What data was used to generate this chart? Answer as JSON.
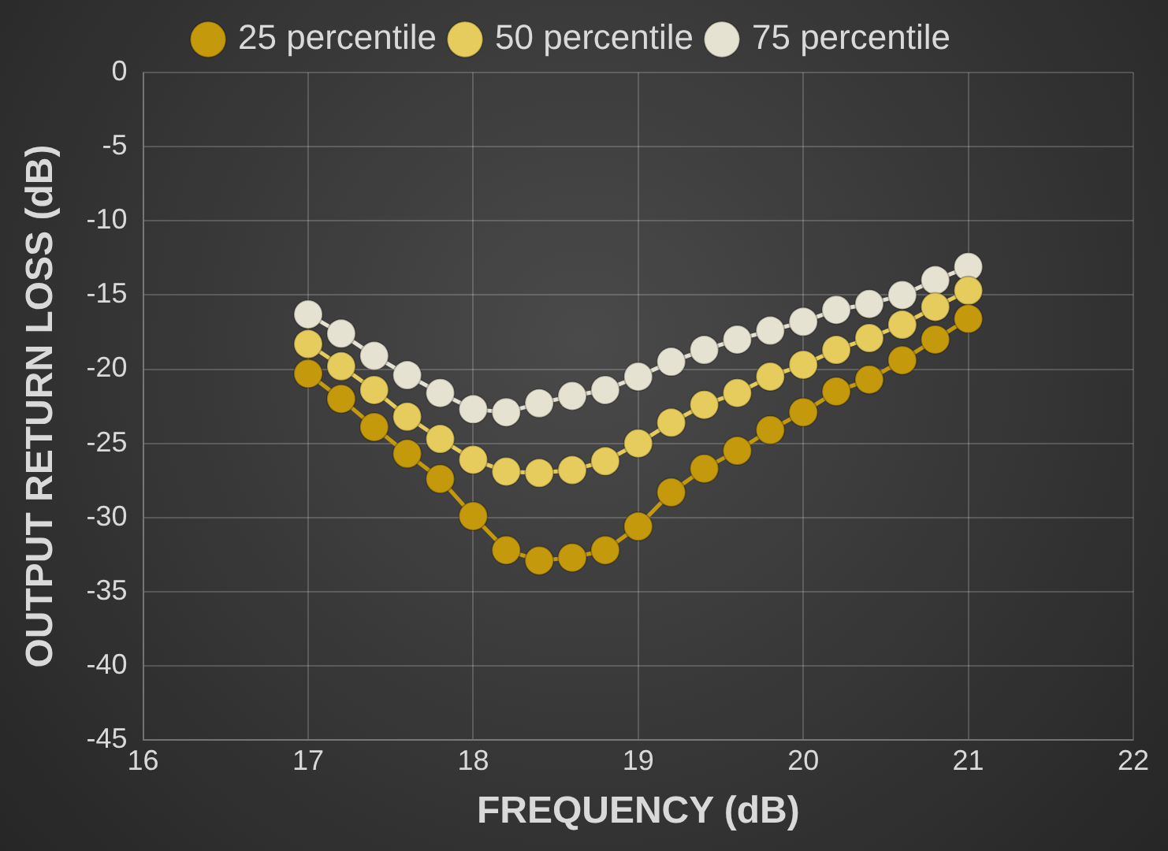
{
  "chart_data": {
    "type": "line",
    "xlabel": "FREQUENCY (dB)",
    "ylabel": "OUTPUT RETURN LOSS (dB)",
    "x": [
      17,
      17.2,
      17.4,
      17.6,
      17.8,
      18,
      18.2,
      18.4,
      18.6,
      18.8,
      19,
      19.2,
      19.4,
      19.6,
      19.8,
      20,
      20.2,
      20.4,
      20.6,
      20.8,
      21
    ],
    "series": [
      {
        "name": "25 percentile",
        "color": "#c49a0c",
        "values": [
          -20.3,
          -22,
          -23.9,
          -25.7,
          -27.4,
          -29.9,
          -32.2,
          -32.9,
          -32.7,
          -32.2,
          -30.6,
          -28.3,
          -26.7,
          -25.5,
          -24.1,
          -22.9,
          -21.5,
          -20.7,
          -19.4,
          -18,
          -16.6
        ]
      },
      {
        "name": "50 percentile",
        "color": "#e6cc5c",
        "values": [
          -18.3,
          -19.8,
          -21.4,
          -23.2,
          -24.7,
          -26.1,
          -26.9,
          -27,
          -26.8,
          -26.2,
          -25,
          -23.6,
          -22.4,
          -21.6,
          -20.5,
          -19.7,
          -18.7,
          -17.9,
          -17,
          -15.8,
          -14.7
        ]
      },
      {
        "name": "75 percentile",
        "color": "#e6e2d2",
        "values": [
          -16.3,
          -17.6,
          -19.1,
          -20.4,
          -21.6,
          -22.7,
          -22.9,
          -22.3,
          -21.8,
          -21.4,
          -20.5,
          -19.5,
          -18.7,
          -18,
          -17.4,
          -16.8,
          -16,
          -15.6,
          -15,
          -14,
          -13.1
        ]
      }
    ],
    "xlim": [
      16,
      22
    ],
    "xticks": [
      16,
      17,
      18,
      19,
      20,
      21,
      22
    ],
    "ylim": [
      -45,
      0
    ],
    "yticks": [
      -45,
      -40,
      -35,
      -30,
      -25,
      -20,
      -15,
      -10,
      -5,
      0
    ],
    "grid": true,
    "legend": "top",
    "marker": "circle",
    "line_style": "solid"
  }
}
